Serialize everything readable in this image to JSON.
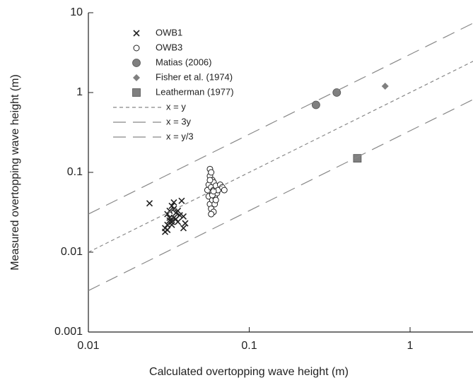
{
  "chart_data": {
    "type": "scatter",
    "x_label": "Calculated overtopping wave height (m)",
    "y_label": "Measured overtopping wave height (m)",
    "log_x": true,
    "log_y": true,
    "xlim": [
      0.01,
      2.5
    ],
    "ylim": [
      0.001,
      10
    ],
    "xticks": [
      0.01,
      0.1,
      1
    ],
    "yticks": [
      0.001,
      0.01,
      0.1,
      1,
      10
    ],
    "series": [
      {
        "name": "OWB1",
        "marker": "x",
        "color": "#222222",
        "x": [
          0.024,
          0.03,
          0.03,
          0.031,
          0.031,
          0.032,
          0.032,
          0.033,
          0.033,
          0.034,
          0.034,
          0.035,
          0.035,
          0.036,
          0.037,
          0.038,
          0.039,
          0.039,
          0.04,
          0.033,
          0.031,
          0.034,
          0.036,
          0.032
        ],
        "values": [
          0.041,
          0.018,
          0.02,
          0.022,
          0.03,
          0.025,
          0.033,
          0.024,
          0.038,
          0.027,
          0.042,
          0.026,
          0.031,
          0.033,
          0.029,
          0.044,
          0.02,
          0.028,
          0.023,
          0.022,
          0.019,
          0.035,
          0.024,
          0.027
        ]
      },
      {
        "name": "OWB3",
        "marker": "circle-open",
        "color": "#222222",
        "x": [
          0.055,
          0.056,
          0.056,
          0.057,
          0.057,
          0.057,
          0.058,
          0.058,
          0.058,
          0.059,
          0.059,
          0.059,
          0.06,
          0.06,
          0.06,
          0.061,
          0.061,
          0.062,
          0.062,
          0.063,
          0.064,
          0.066,
          0.068,
          0.07,
          0.057,
          0.058,
          0.059,
          0.06
        ],
        "values": [
          0.06,
          0.05,
          0.07,
          0.04,
          0.09,
          0.11,
          0.035,
          0.065,
          0.1,
          0.045,
          0.055,
          0.08,
          0.032,
          0.06,
          0.075,
          0.04,
          0.05,
          0.068,
          0.045,
          0.055,
          0.06,
          0.07,
          0.065,
          0.06,
          0.08,
          0.03,
          0.052,
          0.058
        ]
      },
      {
        "name": "Matias (2006)",
        "marker": "circle",
        "color": "#808080",
        "x": [
          0.26,
          0.35
        ],
        "values": [
          0.7,
          1.0
        ]
      },
      {
        "name": "Fisher et al. (1974)",
        "marker": "diamond",
        "color": "#808080",
        "x": [
          0.7
        ],
        "values": [
          1.2
        ]
      },
      {
        "name": "Leatherman (1977)",
        "marker": "square",
        "color": "#808080",
        "x": [
          0.47
        ],
        "values": [
          0.15
        ]
      },
      {
        "name": "x = y",
        "marker": "line",
        "dash": "5 4",
        "color": "#888888",
        "x": [
          0.01,
          2.5
        ],
        "values": [
          0.01,
          2.5
        ]
      },
      {
        "name": "x = 3y",
        "marker": "line",
        "dash": "18 10",
        "color": "#888888",
        "x": [
          0.01,
          2.5
        ],
        "values": [
          0.0033,
          0.83
        ]
      },
      {
        "name": "x = y/3",
        "marker": "line",
        "dash": "18 10",
        "color": "#888888",
        "x": [
          0.01,
          2.5
        ],
        "values": [
          0.03,
          7.5
        ]
      }
    ]
  }
}
